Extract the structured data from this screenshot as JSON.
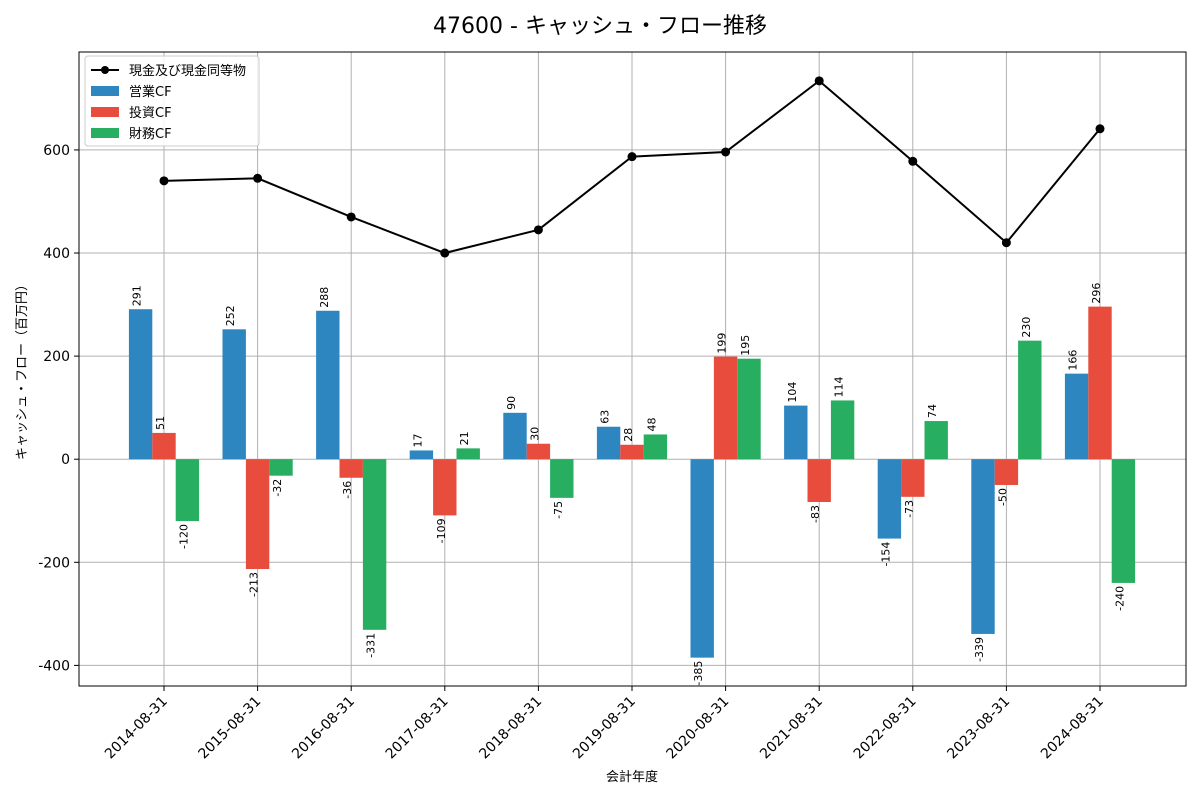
{
  "chart_data": {
    "type": "bar",
    "title": "47600 - キャッシュ・フロー推移",
    "xlabel": "会計年度",
    "ylabel": "キャッシュ・フロー（百万円）",
    "categories": [
      "2014-08-31",
      "2015-08-31",
      "2016-08-31",
      "2017-08-31",
      "2018-08-31",
      "2019-08-31",
      "2020-08-31",
      "2021-08-31",
      "2022-08-31",
      "2023-08-31",
      "2024-08-31"
    ],
    "series": [
      {
        "name": "営業CF",
        "kind": "bar",
        "color": "#2e86c1",
        "values": [
          291,
          252,
          288,
          17,
          90,
          63,
          -385,
          104,
          -154,
          -339,
          166
        ]
      },
      {
        "name": "投資CF",
        "kind": "bar",
        "color": "#e74c3c",
        "values": [
          51,
          -213,
          -36,
          -109,
          30,
          28,
          199,
          -83,
          -73,
          -50,
          296
        ]
      },
      {
        "name": "財務CF",
        "kind": "bar",
        "color": "#27ae60",
        "values": [
          -120,
          -32,
          -331,
          21,
          -75,
          48,
          195,
          114,
          74,
          230,
          -240
        ]
      },
      {
        "name": "現金及び現金同等物",
        "kind": "line",
        "color": "#000000",
        "values": [
          540,
          545,
          470,
          400,
          445,
          587,
          596,
          734,
          578,
          420,
          641
        ]
      }
    ],
    "legend_order": [
      "現金及び現金同等物",
      "営業CF",
      "投資CF",
      "財務CF"
    ],
    "ylim": [
      -440,
      790
    ],
    "yticks": [
      -400,
      -200,
      0,
      200,
      400,
      600
    ],
    "grid": true,
    "legend_position": "top-left"
  }
}
